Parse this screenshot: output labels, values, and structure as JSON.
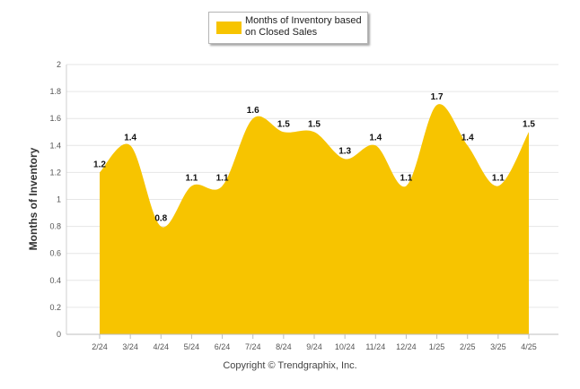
{
  "legend": {
    "label": "Months of Inventory based on Closed Sales"
  },
  "footer": {
    "copyright": "Copyright © Trendgraphix, Inc."
  },
  "chart_data": {
    "type": "area",
    "categories": [
      "2/24",
      "3/24",
      "4/24",
      "5/24",
      "6/24",
      "7/24",
      "8/24",
      "9/24",
      "10/24",
      "11/24",
      "12/24",
      "1/25",
      "2/25",
      "3/25",
      "4/25"
    ],
    "series": [
      {
        "name": "Months of Inventory based on Closed Sales",
        "values": [
          1.2,
          1.4,
          0.8,
          1.1,
          1.1,
          1.6,
          1.5,
          1.5,
          1.3,
          1.4,
          1.1,
          1.7,
          1.4,
          1.1,
          1.5
        ],
        "data_labels": [
          "1.2",
          "1.4",
          "0.8",
          "1.1",
          "1.1",
          "1.6",
          "1.5",
          "1.5",
          "1.3",
          "1.4",
          "1.1",
          "1.7",
          "1.4",
          "1.1",
          "1.5"
        ],
        "color": "#f7c400"
      }
    ],
    "title": "",
    "xlabel": "",
    "ylabel": "Months of Inventory",
    "ylim": [
      0,
      2
    ],
    "yticks": [
      0,
      0.2,
      0.4,
      0.6,
      0.8,
      1,
      1.2,
      1.4,
      1.6,
      1.8,
      2
    ],
    "ytick_labels": [
      "0",
      "0.2",
      "0.4",
      "0.6",
      "0.8",
      "1",
      "1.2",
      "1.4",
      "1.6",
      "1.8",
      "2"
    ],
    "grid": true,
    "legend_position": "top-center"
  }
}
